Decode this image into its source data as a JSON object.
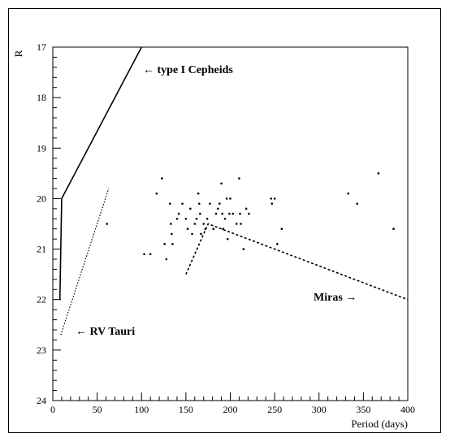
{
  "chart_data": {
    "type": "scatter",
    "title": "",
    "xlabel": "Period (days)",
    "ylabel": "R",
    "xlim": [
      0,
      400
    ],
    "ylim": [
      24,
      17
    ],
    "y_inverted": true,
    "grid": false,
    "x_ticks": [
      0,
      50,
      100,
      150,
      200,
      250,
      300,
      350,
      400
    ],
    "y_ticks": [
      17,
      18,
      19,
      20,
      21,
      22,
      23,
      24
    ],
    "points": [
      [
        61,
        20.5
      ],
      [
        103,
        21.1
      ],
      [
        110,
        21.1
      ],
      [
        117,
        19.9
      ],
      [
        123,
        19.6
      ],
      [
        126,
        20.9
      ],
      [
        128,
        21.2
      ],
      [
        132,
        20.1
      ],
      [
        133,
        20.5
      ],
      [
        134,
        20.7
      ],
      [
        135,
        20.9
      ],
      [
        140,
        20.4
      ],
      [
        142,
        20.3
      ],
      [
        146,
        20.1
      ],
      [
        150,
        20.4
      ],
      [
        152,
        20.6
      ],
      [
        155,
        20.2
      ],
      [
        157,
        20.7
      ],
      [
        160,
        20.5
      ],
      [
        162,
        20.4
      ],
      [
        164,
        19.9
      ],
      [
        165,
        20.1
      ],
      [
        166,
        20.3
      ],
      [
        167,
        20.7
      ],
      [
        170,
        20.5
      ],
      [
        172,
        20.6
      ],
      [
        174,
        20.4
      ],
      [
        177,
        20.1
      ],
      [
        181,
        20.6
      ],
      [
        184,
        20.3
      ],
      [
        186,
        20.2
      ],
      [
        188,
        20.1
      ],
      [
        190,
        19.7
      ],
      [
        191,
        20.3
      ],
      [
        192,
        20.6
      ],
      [
        194,
        20.4
      ],
      [
        196,
        20.0
      ],
      [
        197,
        20.8
      ],
      [
        199,
        20.3
      ],
      [
        200,
        20.0
      ],
      [
        203,
        20.3
      ],
      [
        207,
        20.5
      ],
      [
        210,
        19.6
      ],
      [
        211,
        20.3
      ],
      [
        212,
        20.5
      ],
      [
        215,
        21.0
      ],
      [
        218,
        20.2
      ],
      [
        221,
        20.3
      ],
      [
        246,
        20.0
      ],
      [
        247,
        20.1
      ],
      [
        250,
        20.0
      ],
      [
        253,
        20.9
      ],
      [
        258,
        20.6
      ],
      [
        333,
        19.9
      ],
      [
        343,
        20.1
      ],
      [
        367,
        19.5
      ],
      [
        384,
        20.6
      ]
    ],
    "relations": [
      {
        "label": "← type I Cepheids",
        "style": "solid",
        "points": [
          [
            10,
            20.0
          ],
          [
            100,
            17.0
          ]
        ]
      },
      {
        "label": "← type I Cepheids",
        "style": "solid",
        "points": [
          [
            8,
            22.0
          ],
          [
            10,
            20.0
          ]
        ]
      },
      {
        "label": "← RV Tauri",
        "style": "dotted",
        "points": [
          [
            9,
            22.7
          ],
          [
            63,
            19.8
          ]
        ]
      },
      {
        "label": "Miras →",
        "style": "dashed",
        "points": [
          [
            150,
            21.5
          ],
          [
            175,
            20.5
          ],
          [
            400,
            22.0
          ]
        ]
      }
    ],
    "annotations": {
      "cepheids": "← type I Cepheids",
      "rvtauri": "← RV Tauri",
      "miras": "Miras →"
    }
  }
}
